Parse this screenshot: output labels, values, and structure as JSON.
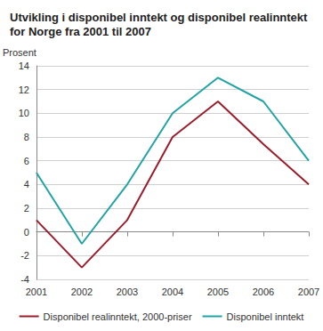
{
  "chart_data": {
    "type": "line",
    "title": "Utvikling i disponibel inntekt og disponibel realinntekt for Norge fra 2001 til 2007",
    "ylabel": "Prosent",
    "categories": [
      "2001",
      "2002",
      "2003",
      "2004",
      "2005",
      "2006",
      "2007"
    ],
    "series": [
      {
        "name": "Disponibel realinntekt, 2000-priser",
        "color": "#9b1c2b",
        "values": [
          1,
          -3,
          1,
          8,
          11,
          7.4,
          4
        ]
      },
      {
        "name": "Disponibel inntekt",
        "color": "#21a3a6",
        "values": [
          5,
          -1,
          4,
          10,
          13,
          11,
          6
        ]
      }
    ],
    "ylim": [
      -4,
      14
    ],
    "yticks": [
      -4,
      -2,
      0,
      2,
      4,
      6,
      8,
      10,
      12,
      14
    ],
    "grid": true,
    "legend": "bottom"
  }
}
